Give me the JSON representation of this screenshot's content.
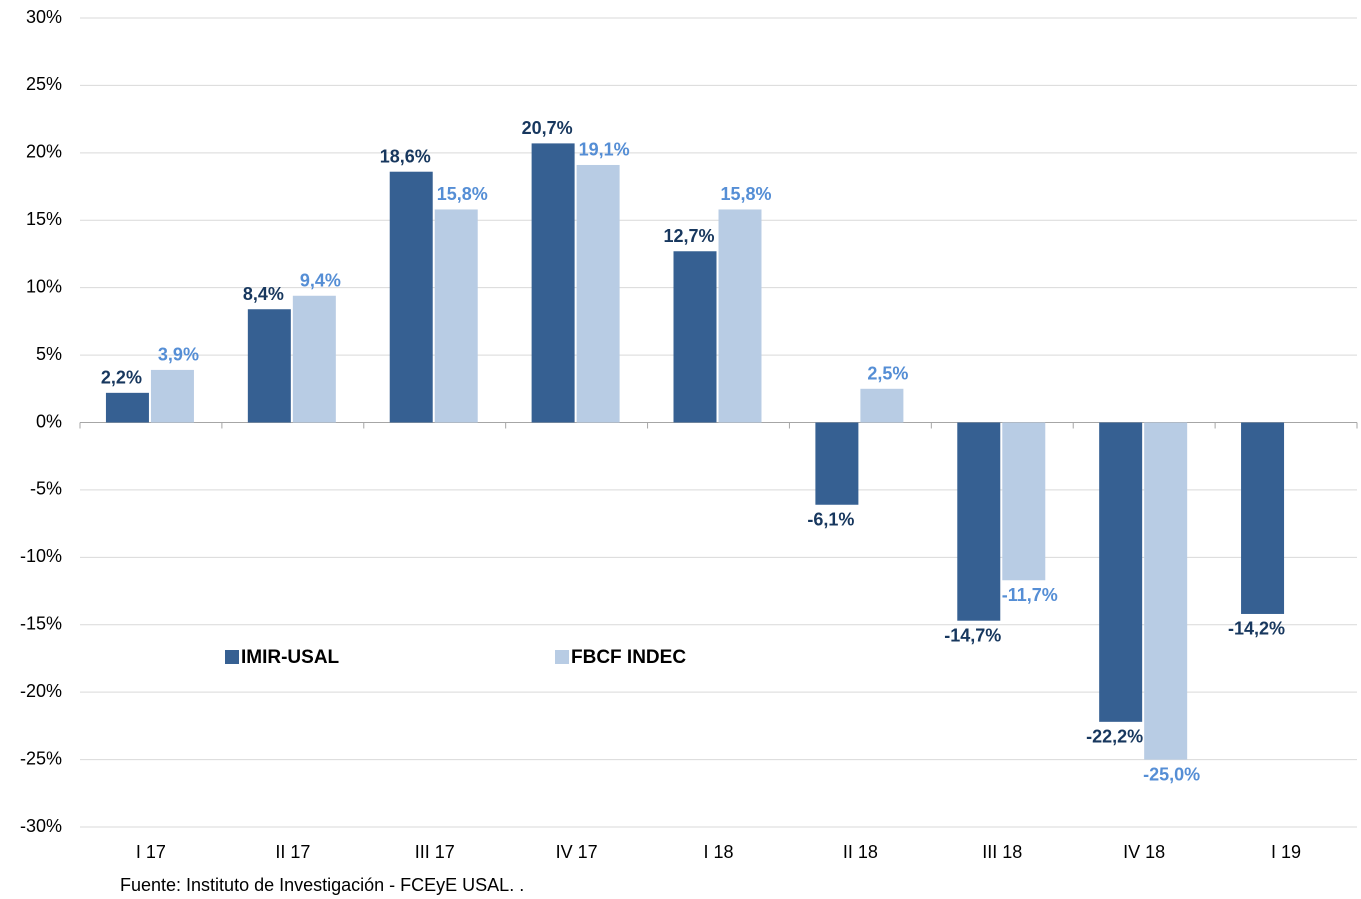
{
  "chart_data": {
    "type": "bar",
    "categories": [
      "I 17",
      "II 17",
      "III 17",
      "IV 17",
      "I 18",
      "II 18",
      "III 18",
      "IV 18",
      "I 19"
    ],
    "series": [
      {
        "name": "IMIR-USAL",
        "color": "#366092",
        "label_color": "#17375e",
        "values": [
          2.2,
          8.4,
          18.6,
          20.7,
          12.7,
          -6.1,
          -14.7,
          -22.2,
          -14.2
        ],
        "value_labels": [
          "2,2%",
          "8,4%",
          "18,6%",
          "20,7%",
          "12,7%",
          "-6,1%",
          "-14,7%",
          "-22,2%",
          "-14,2%"
        ]
      },
      {
        "name": "FBCF INDEC",
        "color": "#b8cce4",
        "label_color": "#558ed5",
        "values": [
          3.9,
          9.4,
          15.8,
          19.1,
          15.8,
          2.5,
          -11.7,
          -25.0,
          null
        ],
        "value_labels": [
          "3,9%",
          "9,4%",
          "15,8%",
          "19,1%",
          "15,8%",
          "2,5%",
          "-11,7%",
          "-25,0%",
          null
        ]
      }
    ],
    "ylim": [
      -30,
      30
    ],
    "yticks": [
      {
        "value": -30,
        "label": "-30%"
      },
      {
        "value": -25,
        "label": "-25%"
      },
      {
        "value": -20,
        "label": "-20%"
      },
      {
        "value": -15,
        "label": "-15%"
      },
      {
        "value": -10,
        "label": "-10%"
      },
      {
        "value": -5,
        "label": "-5%"
      },
      {
        "value": 0,
        "label": "0%"
      },
      {
        "value": 5,
        "label": "5%"
      },
      {
        "value": 10,
        "label": "10%"
      },
      {
        "value": 15,
        "label": "15%"
      },
      {
        "value": 20,
        "label": "20%"
      },
      {
        "value": 25,
        "label": "25%"
      },
      {
        "value": 30,
        "label": "30%"
      }
    ],
    "grid": true,
    "source": "Fuente: Instituto de Investigación - FCEyE USAL. ."
  }
}
